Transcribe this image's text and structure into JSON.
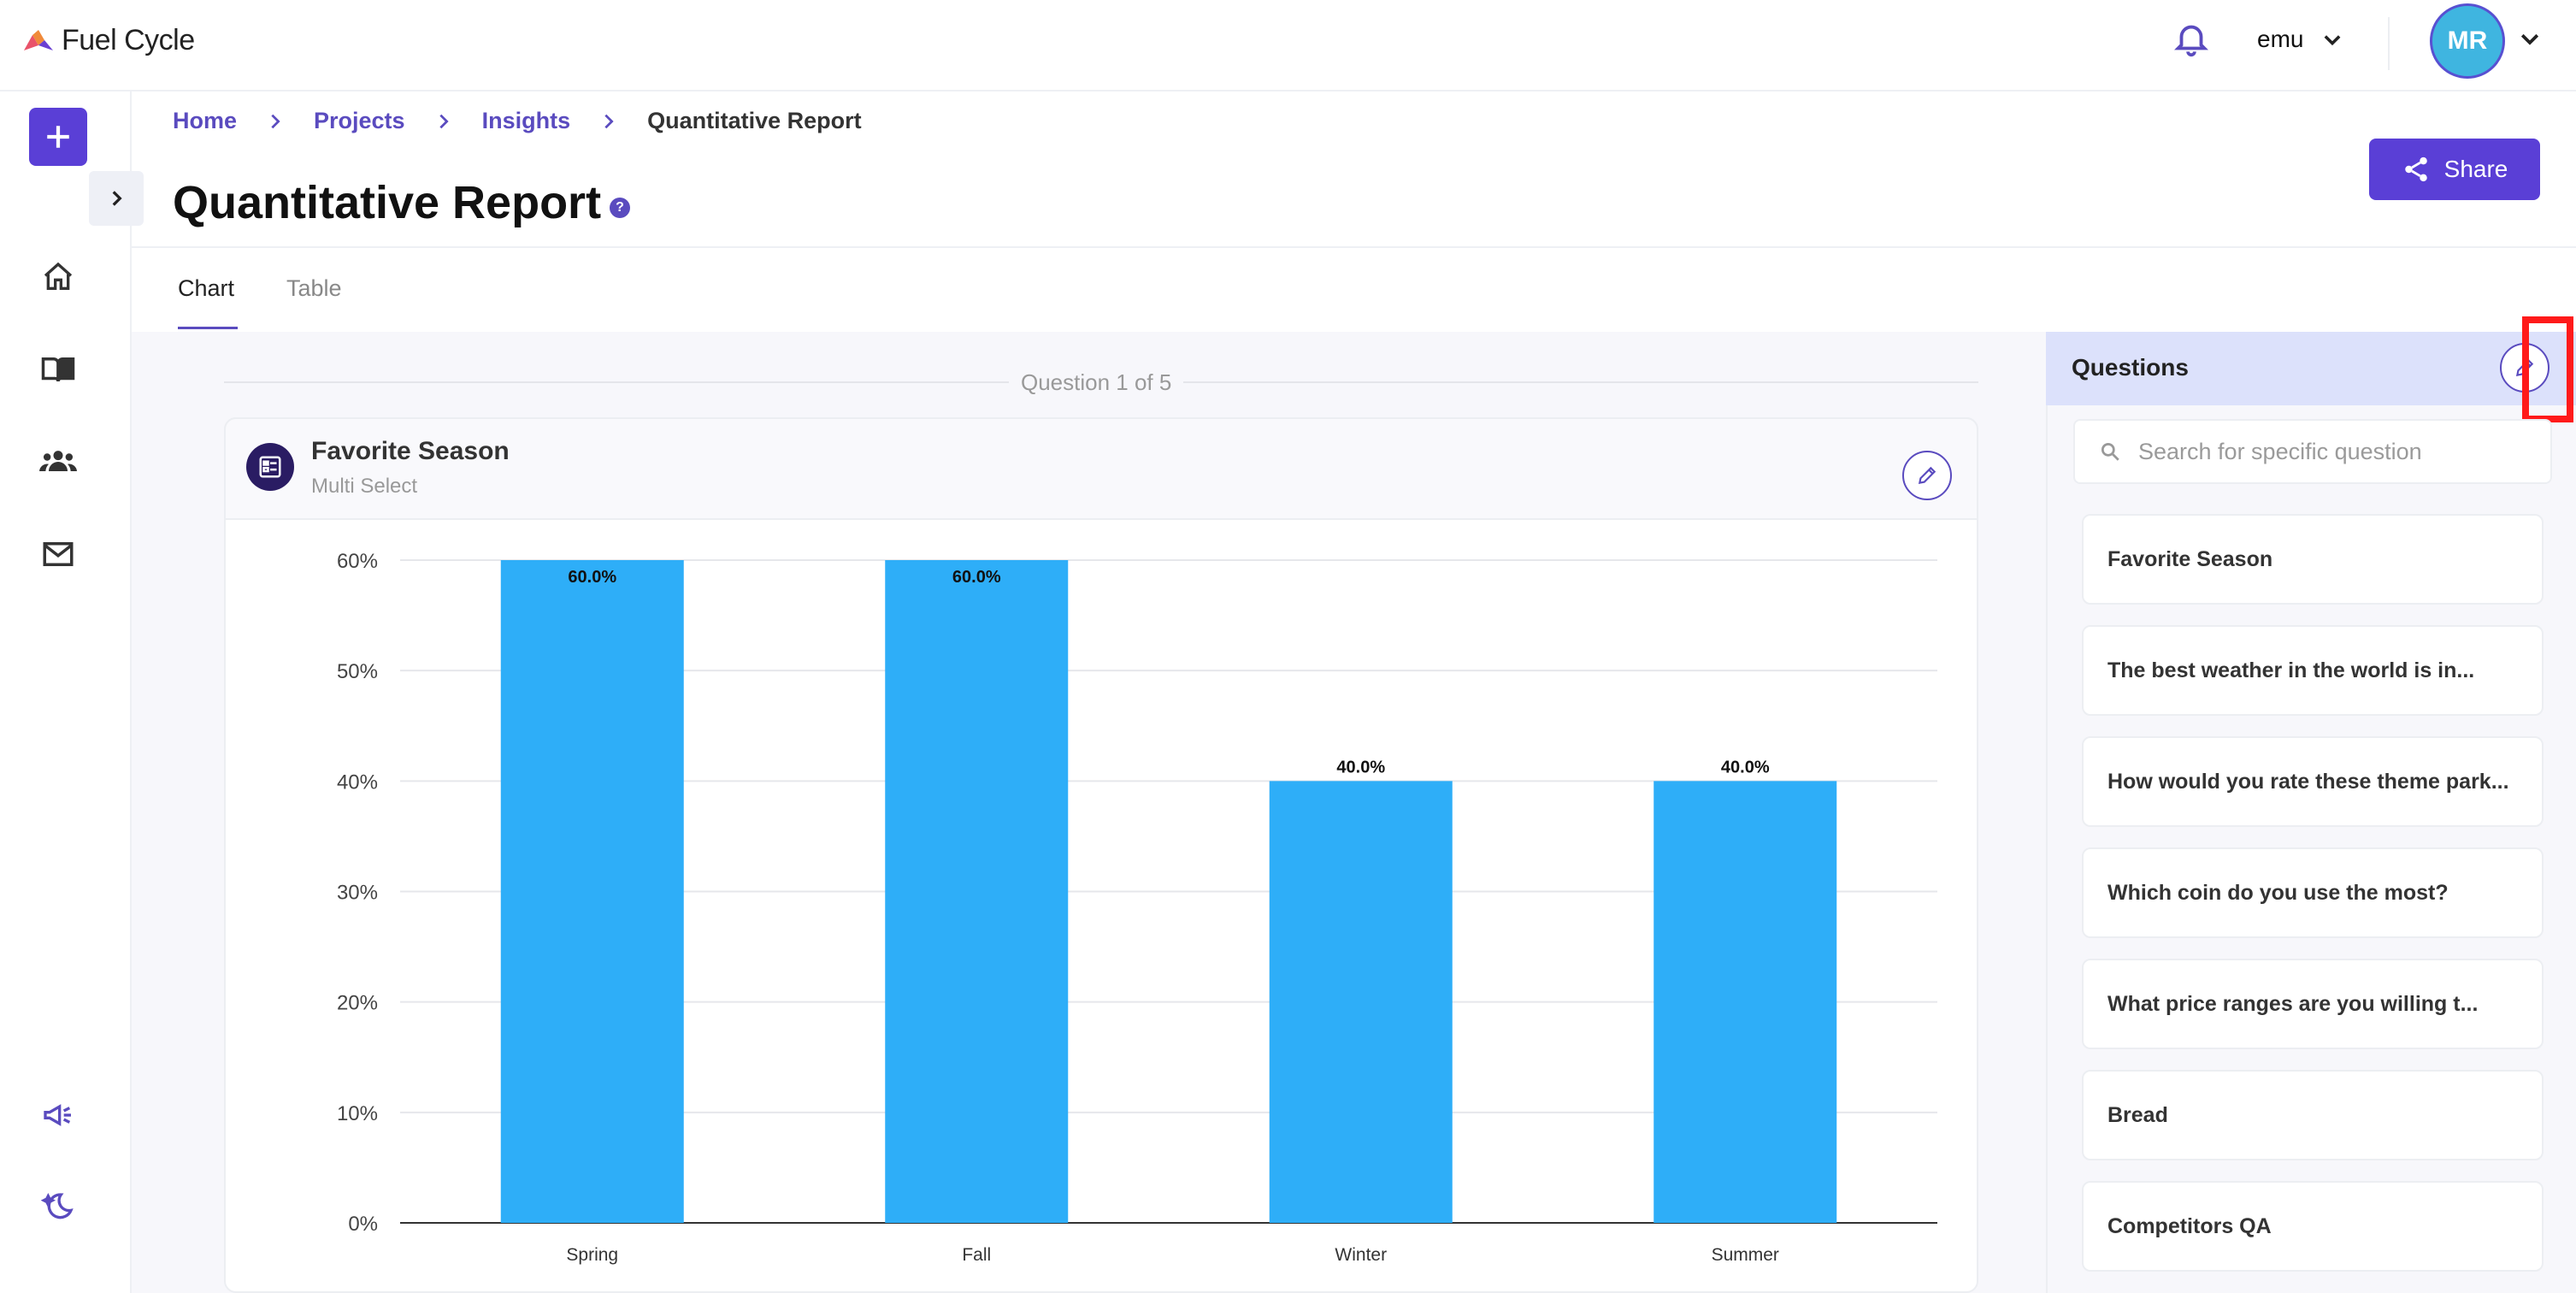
{
  "brand": {
    "name": "Fuel Cycle"
  },
  "header": {
    "tenant": "emu",
    "avatar_initials": "MR"
  },
  "breadcrumb": {
    "home": "Home",
    "projects": "Projects",
    "insights": "Insights",
    "current": "Quantitative Report"
  },
  "page": {
    "title": "Quantitative Report",
    "help": "?"
  },
  "share": {
    "label": "Share"
  },
  "tabs": {
    "chart": "Chart",
    "table": "Table",
    "active": "Chart"
  },
  "question_counter": "Question 1 of 5",
  "question": {
    "title": "Favorite Season",
    "type": "Multi Select"
  },
  "chart_data": {
    "type": "bar",
    "categories": [
      "Spring",
      "Fall",
      "Winter",
      "Summer"
    ],
    "values": [
      60.0,
      60.0,
      40.0,
      40.0
    ],
    "value_labels": [
      "60.0%",
      "60.0%",
      "40.0%",
      "40.0%"
    ],
    "ylim": [
      0,
      60
    ],
    "yticks": [
      "0%",
      "10%",
      "20%",
      "30%",
      "40%",
      "50%",
      "60%"
    ],
    "bar_color": "#2eaef8",
    "grid": true
  },
  "questions_panel": {
    "title": "Questions",
    "search_placeholder": "Search for specific question",
    "items": [
      "Favorite Season",
      "The best weather in the world is in...",
      "How would you rate these theme park...",
      "Which coin do you use the most?",
      "What price ranges are you willing t...",
      "Bread",
      "Competitors QA"
    ]
  },
  "colors": {
    "accent": "#5a3fd6",
    "bar": "#2eaef8",
    "highlight": "#ff1a1a"
  }
}
